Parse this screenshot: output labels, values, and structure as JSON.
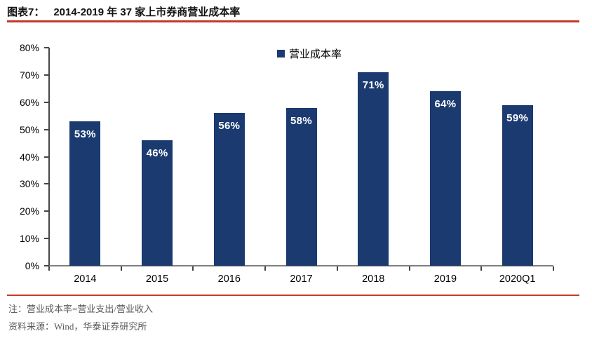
{
  "figure": {
    "label": "图表7：",
    "title": "2014-2019 年 37 家上市券商营业成本率"
  },
  "chart_data": {
    "type": "bar",
    "title": "2014-2019 年 37 家上市券商营业成本率",
    "categories": [
      "2014",
      "2015",
      "2016",
      "2017",
      "2018",
      "2019",
      "2020Q1"
    ],
    "values": [
      53,
      46,
      56,
      58,
      71,
      64,
      59
    ],
    "value_labels": [
      "53%",
      "46%",
      "56%",
      "58%",
      "71%",
      "64%",
      "59%"
    ],
    "series": [
      {
        "name": "营业成本率",
        "values": [
          53,
          46,
          56,
          58,
          71,
          64,
          59
        ]
      }
    ],
    "xlabel": "",
    "ylabel": "",
    "ylim": [
      0,
      80
    ],
    "ytick_labels": [
      "0%",
      "10%",
      "20%",
      "30%",
      "40%",
      "50%",
      "60%",
      "70%",
      "80%"
    ],
    "grid": false,
    "legend_position": "top-center",
    "bar_color": "#1B3A70",
    "value_label_color": "#FFFFFF"
  },
  "legend": {
    "label": "营业成本率"
  },
  "footer": {
    "note": "注：营业成本率=营业支出/营业收入",
    "source": "资料来源：Wind，华泰证券研究所"
  },
  "colors": {
    "bar": "#1B3A70",
    "rule_red": "#C43A26",
    "note_gray": "#595959",
    "axis_dark": "#454545",
    "baseline_gray": "#7F7F7F"
  }
}
